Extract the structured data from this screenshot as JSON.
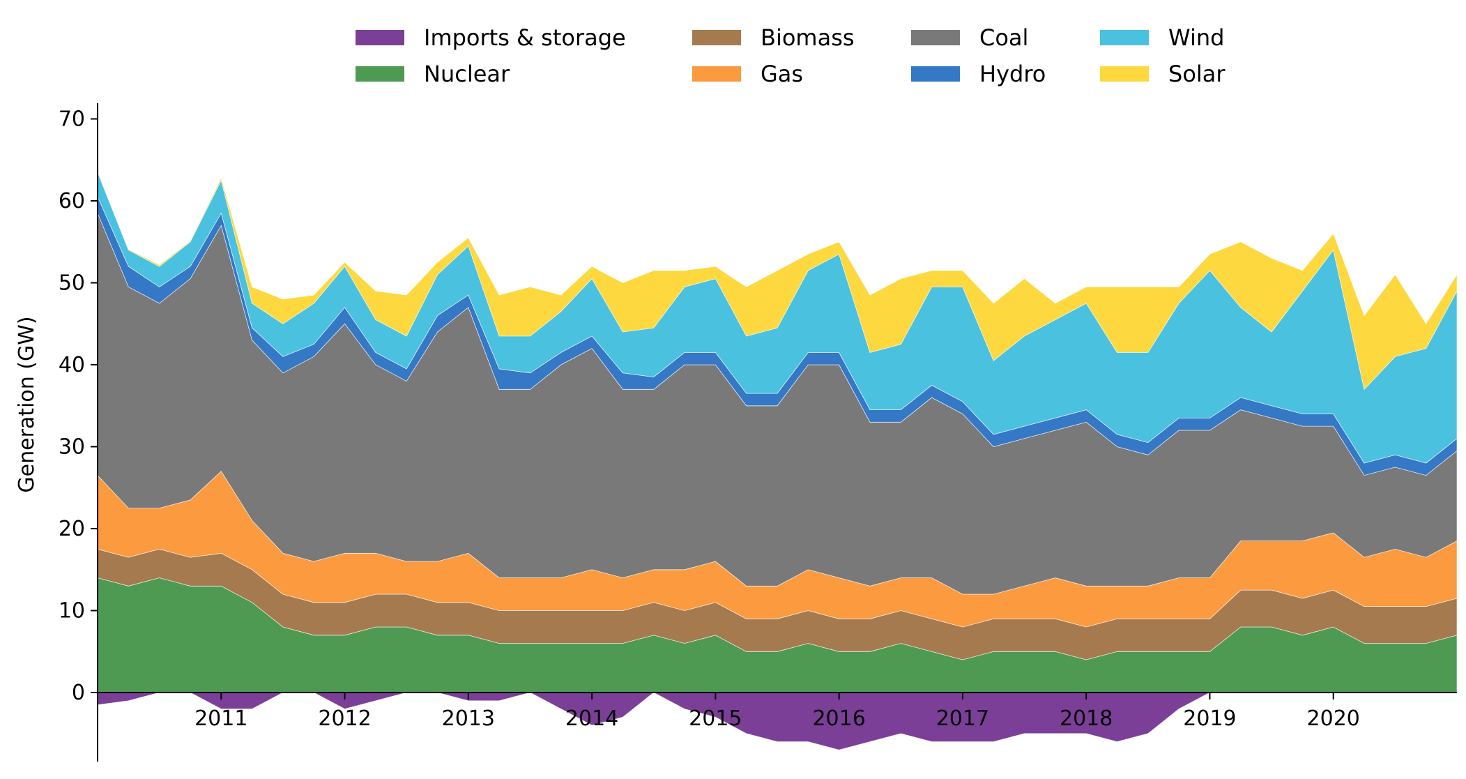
{
  "chart_data": {
    "type": "area",
    "title": "",
    "xlabel": "",
    "ylabel": "Generation (GW)",
    "xlim": [
      2010.0,
      2021.0
    ],
    "ylim": [
      -9,
      72
    ],
    "x_ticks": [
      2011,
      2012,
      2013,
      2014,
      2015,
      2016,
      2017,
      2018,
      2019,
      2020
    ],
    "x_tick_labels": [
      "2011",
      "2012",
      "2013",
      "2014",
      "2015",
      "2016",
      "2017",
      "2018",
      "2019",
      "2020"
    ],
    "y_ticks": [
      0,
      10,
      20,
      30,
      40,
      50,
      60,
      70
    ],
    "y_tick_labels": [
      "0",
      "10",
      "20",
      "30",
      "40",
      "50",
      "60",
      "70"
    ],
    "legend_position": "top-center",
    "grid": false,
    "stack_order_bottom_to_top": [
      "Imports & storage",
      "Nuclear",
      "Biomass",
      "Gas",
      "Coal",
      "Hydro",
      "Wind",
      "Solar"
    ],
    "x": [
      2010.0,
      2010.25,
      2010.5,
      2010.75,
      2011.0,
      2011.25,
      2011.5,
      2011.75,
      2012.0,
      2012.25,
      2012.5,
      2012.75,
      2013.0,
      2013.25,
      2013.5,
      2013.75,
      2014.0,
      2014.25,
      2014.5,
      2014.75,
      2015.0,
      2015.25,
      2015.5,
      2015.75,
      2016.0,
      2016.25,
      2016.5,
      2016.75,
      2017.0,
      2017.25,
      2017.5,
      2017.75,
      2018.0,
      2018.25,
      2018.5,
      2018.75,
      2019.0,
      2019.25,
      2019.5,
      2019.75,
      2020.0,
      2020.25,
      2020.5,
      2020.75,
      2021.0
    ],
    "series": [
      {
        "name": "Imports & storage",
        "color": "#7b3f98",
        "values": [
          -1.5,
          -1,
          2,
          0,
          -2,
          -2,
          4,
          2,
          -2,
          -1,
          1,
          0,
          -1,
          -1,
          1,
          -2,
          -4,
          -3,
          2,
          -2,
          -3,
          -5,
          -6,
          -6,
          -7,
          -6,
          -5,
          -6,
          -6,
          -6,
          -5,
          -5,
          -5,
          -6,
          -5,
          -2,
          0,
          0,
          0,
          0,
          0,
          0,
          0,
          0,
          0
        ]
      },
      {
        "name": "Nuclear",
        "color": "#4e9a53",
        "values": [
          14,
          13,
          14,
          13,
          13,
          11,
          8,
          7,
          7,
          8,
          8,
          7,
          7,
          6,
          6,
          6,
          6,
          6,
          7,
          6,
          7,
          5,
          5,
          6,
          5,
          5,
          6,
          5,
          4,
          5,
          5,
          5,
          4,
          5,
          5,
          5,
          5,
          8,
          8,
          7,
          8,
          6,
          6,
          6,
          7
        ]
      },
      {
        "name": "Biomass",
        "color": "#a67a4f",
        "values": [
          3.5,
          3.5,
          3.5,
          3.5,
          4,
          4,
          4,
          4,
          4,
          4,
          4,
          4,
          4,
          4,
          4,
          4,
          4,
          4,
          4,
          4,
          4,
          4,
          4,
          4,
          4,
          4,
          4,
          4,
          4,
          4,
          4,
          4,
          4,
          4,
          4,
          4,
          4,
          4.5,
          4.5,
          4.5,
          4.5,
          4.5,
          4.5,
          4.5,
          4.5
        ]
      },
      {
        "name": "Gas",
        "color": "#fb9a3e",
        "values": [
          9,
          6,
          5,
          7,
          10,
          6,
          5,
          5,
          6,
          5,
          4,
          5,
          6,
          4,
          4,
          4,
          5,
          4,
          4,
          5,
          5,
          4,
          4,
          5,
          5,
          4,
          4,
          5,
          4,
          3,
          4,
          5,
          5,
          4,
          4,
          5,
          5,
          6,
          6,
          7,
          7,
          6,
          7,
          6,
          7
        ]
      },
      {
        "name": "Coal",
        "color": "#797979",
        "values": [
          32,
          27,
          25,
          27,
          30,
          22,
          22,
          25,
          28,
          23,
          22,
          28,
          30,
          23,
          23,
          26,
          27,
          23,
          22,
          25,
          24,
          22,
          22,
          25,
          26,
          20,
          19,
          22,
          22,
          18,
          18,
          18,
          20,
          17,
          16,
          18,
          18,
          16,
          15,
          14,
          13,
          10,
          10,
          10,
          11
        ]
      },
      {
        "name": "Hydro",
        "color": "#3478c6",
        "values": [
          2,
          2.5,
          2,
          1.5,
          1.5,
          1.5,
          2,
          1.5,
          2,
          1.5,
          1.5,
          2,
          1.5,
          2.5,
          2,
          1.5,
          1.5,
          2,
          1.5,
          1.5,
          1.5,
          1.5,
          1.5,
          1.5,
          1.5,
          1.5,
          1.5,
          1.5,
          1.5,
          1.5,
          1.5,
          1.5,
          1.5,
          1.5,
          1.5,
          1.5,
          1.5,
          1.5,
          1.5,
          1.5,
          1.5,
          1.5,
          1.5,
          1.5,
          1.5
        ]
      },
      {
        "name": "Wind",
        "color": "#4bc1e0",
        "values": [
          3,
          2,
          2.5,
          3,
          4,
          3,
          4,
          5,
          5,
          4,
          4,
          5,
          6,
          4,
          4.5,
          5,
          7,
          5,
          6,
          8,
          9,
          7,
          8,
          10,
          12,
          7,
          8,
          12,
          14,
          9,
          11,
          12,
          13,
          10,
          11,
          14,
          18,
          11,
          9,
          15,
          20,
          9,
          12,
          14,
          18
        ]
      },
      {
        "name": "Solar",
        "color": "#fdd83e",
        "values": [
          0,
          0.1,
          0.2,
          0.1,
          0.3,
          2,
          3,
          1,
          0.5,
          3.5,
          5,
          1.5,
          1,
          5,
          6,
          2,
          1.5,
          6,
          7,
          2,
          1.5,
          6,
          7,
          2,
          1.5,
          7,
          8,
          2,
          2,
          7,
          7,
          2,
          2,
          8,
          8,
          2,
          2,
          8,
          9,
          2.5,
          2,
          9,
          10,
          3,
          2
        ]
      }
    ]
  }
}
